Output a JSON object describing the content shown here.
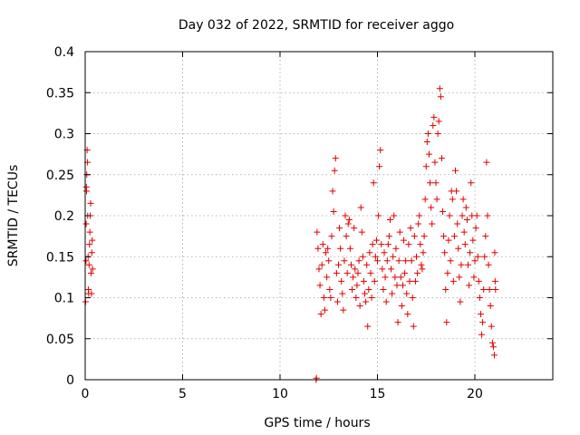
{
  "chart_data": {
    "type": "scatter",
    "title": "Day 032 of 2022, SRMTID for receiver aggo",
    "xlabel": "GPS time / hours",
    "ylabel": "SRMTID / TECUs",
    "xlim": [
      0,
      24
    ],
    "ylim": [
      0,
      0.4
    ],
    "xticks": [
      0,
      5,
      10,
      15,
      20
    ],
    "xtick_labels": [
      "0",
      "5",
      "10",
      "15",
      "20"
    ],
    "yticks": [
      0,
      0.05,
      0.1,
      0.15,
      0.2,
      0.25,
      0.3,
      0.35,
      0.4
    ],
    "ytick_labels": [
      "0",
      "0.05",
      "0.1",
      "0.15",
      "0.2",
      "0.25",
      "0.3",
      "0.35",
      "0.4"
    ],
    "grid": true,
    "marker": "+",
    "color": "#e00000",
    "series": [
      {
        "name": "SRMTID",
        "points": [
          [
            0.02,
            0.095
          ],
          [
            0.04,
            0.145
          ],
          [
            0.05,
            0.19
          ],
          [
            0.06,
            0.235
          ],
          [
            0.07,
            0.23
          ],
          [
            0.08,
            0.25
          ],
          [
            0.1,
            0.28
          ],
          [
            0.12,
            0.265
          ],
          [
            0.13,
            0.2
          ],
          [
            0.15,
            0.15
          ],
          [
            0.16,
            0.11
          ],
          [
            0.18,
            0.105
          ],
          [
            0.2,
            0.14
          ],
          [
            0.22,
            0.165
          ],
          [
            0.24,
            0.18
          ],
          [
            0.26,
            0.2
          ],
          [
            0.28,
            0.215
          ],
          [
            0.3,
            0.13
          ],
          [
            0.32,
            0.105
          ],
          [
            0.34,
            0.155
          ],
          [
            0.36,
            0.17
          ],
          [
            0.38,
            0.135
          ],
          [
            11.85,
            0.0
          ],
          [
            11.87,
            0.002
          ],
          [
            11.9,
            0.18
          ],
          [
            11.95,
            0.16
          ],
          [
            12.0,
            0.135
          ],
          [
            12.05,
            0.115
          ],
          [
            12.1,
            0.08
          ],
          [
            12.15,
            0.14
          ],
          [
            12.2,
            0.165
          ],
          [
            12.25,
            0.1
          ],
          [
            12.3,
            0.085
          ],
          [
            12.35,
            0.155
          ],
          [
            12.4,
            0.125
          ],
          [
            12.45,
            0.16
          ],
          [
            12.5,
            0.145
          ],
          [
            12.55,
            0.11
          ],
          [
            12.6,
            0.1
          ],
          [
            12.65,
            0.175
          ],
          [
            12.7,
            0.23
          ],
          [
            12.75,
            0.205
          ],
          [
            12.8,
            0.255
          ],
          [
            12.85,
            0.27
          ],
          [
            12.9,
            0.13
          ],
          [
            12.95,
            0.095
          ],
          [
            13.0,
            0.14
          ],
          [
            13.05,
            0.185
          ],
          [
            13.1,
            0.16
          ],
          [
            13.15,
            0.12
          ],
          [
            13.2,
            0.105
          ],
          [
            13.25,
            0.085
          ],
          [
            13.3,
            0.145
          ],
          [
            13.35,
            0.2
          ],
          [
            13.4,
            0.175
          ],
          [
            13.45,
            0.13
          ],
          [
            13.5,
            0.19
          ],
          [
            13.55,
            0.195
          ],
          [
            13.6,
            0.16
          ],
          [
            13.65,
            0.14
          ],
          [
            13.7,
            0.11
          ],
          [
            13.75,
            0.125
          ],
          [
            13.8,
            0.185
          ],
          [
            13.85,
            0.135
          ],
          [
            13.9,
            0.1
          ],
          [
            13.95,
            0.115
          ],
          [
            14.0,
            0.13
          ],
          [
            14.05,
            0.145
          ],
          [
            14.1,
            0.09
          ],
          [
            14.15,
            0.21
          ],
          [
            14.2,
            0.18
          ],
          [
            14.25,
            0.15
          ],
          [
            14.3,
            0.12
          ],
          [
            14.35,
            0.105
          ],
          [
            14.4,
            0.095
          ],
          [
            14.45,
            0.14
          ],
          [
            14.5,
            0.065
          ],
          [
            14.55,
            0.11
          ],
          [
            14.6,
            0.155
          ],
          [
            14.65,
            0.13
          ],
          [
            14.7,
            0.1
          ],
          [
            14.75,
            0.165
          ],
          [
            14.8,
            0.24
          ],
          [
            14.85,
            0.12
          ],
          [
            14.9,
            0.15
          ],
          [
            14.95,
            0.17
          ],
          [
            15.0,
            0.145
          ],
          [
            15.05,
            0.2
          ],
          [
            15.1,
            0.26
          ],
          [
            15.15,
            0.28
          ],
          [
            15.2,
            0.165
          ],
          [
            15.25,
            0.135
          ],
          [
            15.3,
            0.11
          ],
          [
            15.35,
            0.155
          ],
          [
            15.4,
            0.125
          ],
          [
            15.45,
            0.095
          ],
          [
            15.5,
            0.145
          ],
          [
            15.55,
            0.165
          ],
          [
            15.6,
            0.175
          ],
          [
            15.65,
            0.195
          ],
          [
            15.7,
            0.135
          ],
          [
            15.75,
            0.105
          ],
          [
            15.8,
            0.15
          ],
          [
            15.85,
            0.2
          ],
          [
            15.9,
            0.125
          ],
          [
            15.95,
            0.16
          ],
          [
            16.0,
            0.115
          ],
          [
            16.05,
            0.07
          ],
          [
            16.1,
            0.145
          ],
          [
            16.15,
            0.18
          ],
          [
            16.2,
            0.125
          ],
          [
            16.25,
            0.09
          ],
          [
            16.3,
            0.115
          ],
          [
            16.35,
            0.17
          ],
          [
            16.4,
            0.13
          ],
          [
            16.45,
            0.145
          ],
          [
            16.5,
            0.105
          ],
          [
            16.55,
            0.08
          ],
          [
            16.6,
            0.165
          ],
          [
            16.65,
            0.12
          ],
          [
            16.7,
            0.185
          ],
          [
            16.75,
            0.145
          ],
          [
            16.8,
            0.1
          ],
          [
            16.85,
            0.065
          ],
          [
            16.9,
            0.175
          ],
          [
            16.95,
            0.12
          ],
          [
            17.0,
            0.15
          ],
          [
            17.05,
            0.13
          ],
          [
            17.1,
            0.19
          ],
          [
            17.15,
            0.2
          ],
          [
            17.2,
            0.165
          ],
          [
            17.25,
            0.14
          ],
          [
            17.3,
            0.135
          ],
          [
            17.35,
            0.155
          ],
          [
            17.4,
            0.175
          ],
          [
            17.45,
            0.22
          ],
          [
            17.5,
            0.26
          ],
          [
            17.55,
            0.29
          ],
          [
            17.6,
            0.3
          ],
          [
            17.65,
            0.275
          ],
          [
            17.7,
            0.24
          ],
          [
            17.75,
            0.21
          ],
          [
            17.8,
            0.19
          ],
          [
            17.85,
            0.31
          ],
          [
            17.9,
            0.32
          ],
          [
            17.95,
            0.265
          ],
          [
            18.0,
            0.24
          ],
          [
            18.05,
            0.22
          ],
          [
            18.1,
            0.3
          ],
          [
            18.15,
            0.315
          ],
          [
            18.2,
            0.355
          ],
          [
            18.25,
            0.345
          ],
          [
            18.3,
            0.27
          ],
          [
            18.35,
            0.205
          ],
          [
            18.4,
            0.175
          ],
          [
            18.45,
            0.155
          ],
          [
            18.5,
            0.11
          ],
          [
            18.55,
            0.07
          ],
          [
            18.6,
            0.13
          ],
          [
            18.65,
            0.17
          ],
          [
            18.7,
            0.2
          ],
          [
            18.75,
            0.145
          ],
          [
            18.8,
            0.23
          ],
          [
            18.85,
            0.22
          ],
          [
            18.9,
            0.12
          ],
          [
            18.95,
            0.175
          ],
          [
            19.0,
            0.255
          ],
          [
            19.05,
            0.23
          ],
          [
            19.1,
            0.19
          ],
          [
            19.15,
            0.16
          ],
          [
            19.2,
            0.125
          ],
          [
            19.25,
            0.095
          ],
          [
            19.3,
            0.14
          ],
          [
            19.35,
            0.2
          ],
          [
            19.4,
            0.22
          ],
          [
            19.45,
            0.18
          ],
          [
            19.5,
            0.165
          ],
          [
            19.55,
            0.21
          ],
          [
            19.6,
            0.195
          ],
          [
            19.65,
            0.14
          ],
          [
            19.7,
            0.115
          ],
          [
            19.75,
            0.155
          ],
          [
            19.8,
            0.24
          ],
          [
            19.85,
            0.2
          ],
          [
            19.9,
            0.17
          ],
          [
            19.95,
            0.125
          ],
          [
            20.0,
            0.145
          ],
          [
            20.05,
            0.185
          ],
          [
            20.1,
            0.2
          ],
          [
            20.15,
            0.15
          ],
          [
            20.2,
            0.12
          ],
          [
            20.25,
            0.1
          ],
          [
            20.3,
            0.08
          ],
          [
            20.35,
            0.055
          ],
          [
            20.4,
            0.07
          ],
          [
            20.45,
            0.11
          ],
          [
            20.5,
            0.15
          ],
          [
            20.55,
            0.175
          ],
          [
            20.6,
            0.265
          ],
          [
            20.65,
            0.2
          ],
          [
            20.7,
            0.14
          ],
          [
            20.75,
            0.11
          ],
          [
            20.8,
            0.09
          ],
          [
            20.85,
            0.065
          ],
          [
            20.9,
            0.045
          ],
          [
            20.95,
            0.04
          ],
          [
            21.0,
            0.03
          ],
          [
            21.02,
            0.155
          ],
          [
            21.04,
            0.12
          ],
          [
            21.06,
            0.11
          ]
        ]
      }
    ]
  }
}
